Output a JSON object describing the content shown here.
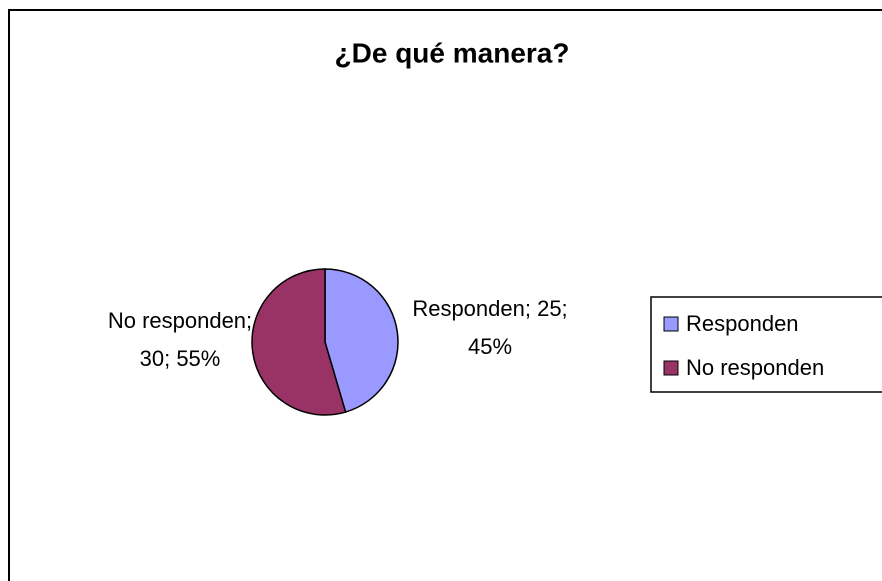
{
  "chart_data": {
    "type": "pie",
    "title": "¿De qué manera?",
    "categories": [
      "Responden",
      "No responden"
    ],
    "values": [
      25,
      30
    ],
    "value_labels": [
      "Responden; 25; 45%",
      "No responden; 30; 55%"
    ],
    "colors": [
      "#9999ff",
      "#993366"
    ],
    "legend": "right"
  }
}
